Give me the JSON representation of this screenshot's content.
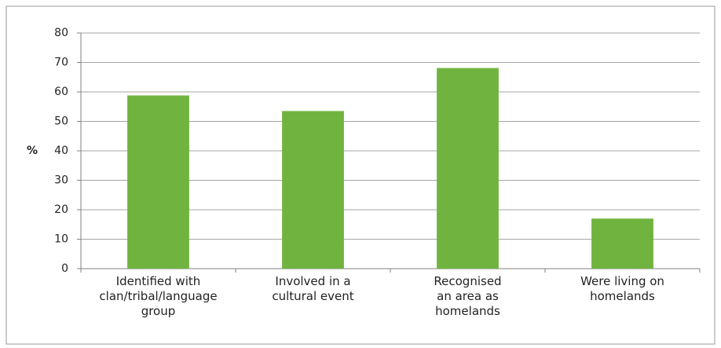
{
  "chart_data": {
    "type": "bar",
    "y_label": "%",
    "categories": [
      "Identified with\nclan/tribal/language\ngroup",
      "Involved in a\ncultural event",
      "Recognised\nan area as\nhomelands",
      "Were living on\nhomelands"
    ],
    "values": [
      58.8,
      53.5,
      68.1,
      17.0
    ],
    "color": "#70b43f",
    "ylim": [
      0,
      80
    ],
    "yticks": [
      0,
      10,
      20,
      30,
      40,
      50,
      60,
      70,
      80
    ],
    "grid": true
  }
}
